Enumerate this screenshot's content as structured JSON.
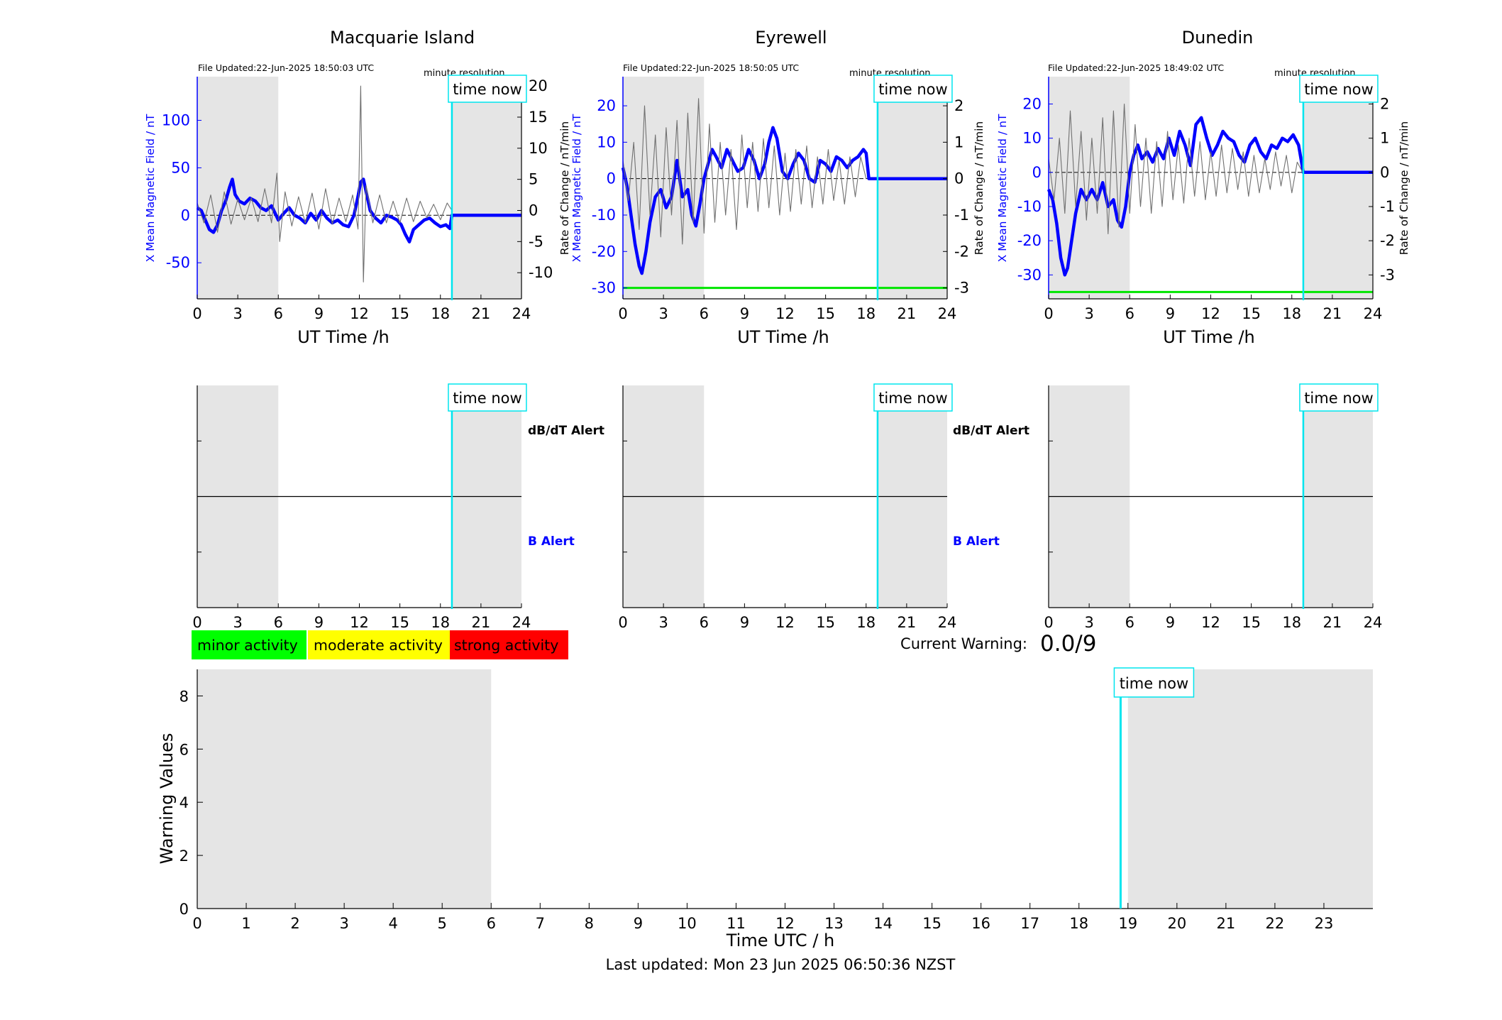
{
  "chart_data": [
    {
      "type": "line",
      "station": "Macquarie Island",
      "file_updated": "File Updated:22-Jun-2025 18:50:03 UTC",
      "resolution": "minute resolution",
      "time_now_label": "time now",
      "time_now_hour": 18.85,
      "night_shading_hours": [
        [
          0,
          6
        ],
        [
          18.9,
          24
        ]
      ],
      "xlabel": "UT Time /h",
      "xlim": [
        0,
        24
      ],
      "xticks": [
        0,
        3,
        6,
        9,
        12,
        15,
        18,
        21,
        24
      ],
      "ylabel_left": "X Mean Magnetic Field / nT",
      "ylim_left": [
        -88,
        146
      ],
      "yticks_left": [
        -50,
        0,
        50,
        100
      ],
      "ylabel_right": "Rate of Change / nT/min",
      "ylim_right": [
        -14.2,
        21.5
      ],
      "yticks_right": [
        -10,
        -5,
        0,
        5,
        10,
        15,
        20
      ],
      "warning_line_left": null,
      "series": [
        {
          "name": "X Mean Magnetic Field",
          "axis": "left",
          "color": "#0000ff",
          "x": [
            0,
            0.3,
            0.6,
            0.9,
            1.2,
            1.5,
            1.8,
            2.1,
            2.4,
            2.6,
            2.8,
            3.1,
            3.5,
            3.9,
            4.3,
            4.7,
            5.1,
            5.5,
            6.0,
            6.4,
            6.8,
            7.2,
            7.6,
            8.0,
            8.4,
            8.8,
            9.2,
            9.6,
            10.0,
            10.4,
            10.8,
            11.2,
            11.6,
            11.9,
            12.1,
            12.3,
            12.5,
            12.8,
            13.2,
            13.6,
            14.0,
            14.4,
            14.8,
            15.1,
            15.4,
            15.7,
            16.0,
            16.4,
            16.8,
            17.2,
            17.6,
            18.0,
            18.4,
            18.7,
            18.85,
            24
          ],
          "y": [
            8,
            5,
            -5,
            -15,
            -18,
            -10,
            5,
            15,
            30,
            38,
            22,
            15,
            12,
            18,
            15,
            8,
            5,
            10,
            -5,
            2,
            8,
            0,
            -3,
            -8,
            2,
            -5,
            5,
            -3,
            -8,
            -5,
            -10,
            -12,
            0,
            20,
            35,
            38,
            25,
            5,
            -3,
            -8,
            0,
            -2,
            -5,
            -10,
            -20,
            -28,
            -15,
            -10,
            -5,
            -3,
            -8,
            -12,
            -10,
            -14,
            0,
            0
          ]
        },
        {
          "name": "Rate of Change",
          "axis": "right",
          "color": "#707070",
          "x": [
            0,
            0.5,
            1.0,
            1.5,
            2.0,
            2.5,
            3.0,
            3.5,
            4.0,
            4.5,
            5.0,
            5.5,
            5.9,
            6.1,
            6.5,
            7.0,
            7.5,
            8.0,
            8.5,
            9.0,
            9.5,
            10.0,
            10.5,
            11.0,
            11.5,
            11.9,
            12.1,
            12.3,
            12.5,
            13.0,
            13.5,
            14.0,
            14.5,
            15.0,
            15.5,
            16.0,
            16.5,
            17.0,
            17.5,
            18.0,
            18.5,
            18.85
          ],
          "y": [
            1.2,
            -2.0,
            2.5,
            -3.5,
            3.0,
            -2.2,
            1.8,
            -1.5,
            2.0,
            -1.8,
            3.5,
            -2.0,
            6.0,
            -5.0,
            3.0,
            -2.5,
            2.2,
            -2.0,
            2.8,
            -3.0,
            3.5,
            -2.2,
            2.0,
            -1.8,
            2.5,
            -3.0,
            20.0,
            -11.5,
            4.0,
            -2.0,
            2.5,
            -2.0,
            1.5,
            -2.0,
            2.0,
            -1.8,
            1.5,
            -1.2,
            1.0,
            -1.5,
            1.2,
            0
          ]
        }
      ],
      "alert": {
        "dbdt_label": "dB/dT Alert",
        "b_label": "B Alert",
        "xlim": [
          0,
          24
        ]
      }
    },
    {
      "type": "line",
      "station": "Eyrewell",
      "file_updated": "File Updated:22-Jun-2025 18:50:05 UTC",
      "resolution": "minute resolution",
      "time_now_label": "time now",
      "time_now_hour": 18.85,
      "night_shading_hours": [
        [
          0,
          6
        ],
        [
          18.9,
          24
        ]
      ],
      "xlabel": "UT Time /h",
      "xlim": [
        0,
        24
      ],
      "xticks": [
        0,
        3,
        6,
        9,
        12,
        15,
        18,
        21,
        24
      ],
      "ylabel_left": "X Mean Magnetic Field / nT",
      "ylim_left": [
        -33,
        28
      ],
      "yticks_left": [
        -30,
        -20,
        -10,
        0,
        10,
        20
      ],
      "ylabel_right": "Rate of Change / nT/min",
      "ylim_right": [
        -3.3,
        2.8
      ],
      "yticks_right": [
        -3,
        -2,
        -1,
        0,
        1,
        2
      ],
      "warning_line_left": -30,
      "series": [
        {
          "name": "X Mean Magnetic Field",
          "axis": "left",
          "color": "#0000ff",
          "x": [
            0,
            0.3,
            0.6,
            0.9,
            1.2,
            1.4,
            1.7,
            2.0,
            2.4,
            2.8,
            3.2,
            3.6,
            4.0,
            4.4,
            4.8,
            5.1,
            5.4,
            5.7,
            6.0,
            6.3,
            6.6,
            6.9,
            7.3,
            7.7,
            8.1,
            8.5,
            8.9,
            9.3,
            9.7,
            10.1,
            10.5,
            10.8,
            11.1,
            11.4,
            11.8,
            12.2,
            12.6,
            13.0,
            13.4,
            13.8,
            14.2,
            14.6,
            15.0,
            15.4,
            15.8,
            16.2,
            16.6,
            17.0,
            17.4,
            17.8,
            18.0,
            18.2,
            24
          ],
          "y": [
            3,
            -2,
            -10,
            -18,
            -24,
            -26,
            -20,
            -12,
            -5,
            -3,
            -8,
            -5,
            5,
            -5,
            -3,
            -10,
            -13,
            -7,
            0,
            4,
            8,
            6,
            3,
            8,
            5,
            2,
            3,
            8,
            5,
            0,
            4,
            10,
            14,
            11,
            2,
            0,
            4,
            7,
            5,
            0,
            -1,
            5,
            4,
            2,
            6,
            5,
            3,
            5,
            6,
            8,
            7,
            0,
            0
          ]
        },
        {
          "name": "Rate of Change",
          "axis": "right",
          "color": "#707070",
          "x": [
            0,
            0.4,
            0.8,
            1.2,
            1.6,
            2.0,
            2.4,
            2.8,
            3.2,
            3.6,
            4.0,
            4.4,
            4.8,
            5.2,
            5.6,
            6.0,
            6.4,
            6.8,
            7.2,
            7.6,
            8.0,
            8.4,
            8.8,
            9.2,
            9.6,
            10.0,
            10.4,
            10.8,
            11.2,
            11.6,
            12.0,
            12.4,
            12.8,
            13.2,
            13.6,
            14.0,
            14.4,
            14.8,
            15.2,
            15.6,
            16.0,
            16.4,
            16.8,
            17.2,
            17.6,
            18.0
          ],
          "y": [
            0.5,
            -0.6,
            1.0,
            -1.4,
            2.0,
            -1.0,
            1.2,
            -1.6,
            1.4,
            -1.0,
            1.6,
            -1.8,
            1.8,
            -1.2,
            2.2,
            -1.5,
            1.5,
            -1.2,
            1.0,
            -1.0,
            0.8,
            -1.4,
            1.2,
            -0.8,
            1.0,
            -0.9,
            1.1,
            -0.8,
            0.9,
            -1.0,
            0.7,
            -0.9,
            0.8,
            -0.7,
            0.9,
            -0.8,
            0.6,
            -0.7,
            0.8,
            -0.6,
            0.5,
            -0.7,
            0.6,
            -0.5,
            0.6,
            0
          ]
        }
      ],
      "alert": {
        "dbdt_label": "dB/dT Alert",
        "b_label": "B Alert",
        "xlim": [
          0,
          24
        ]
      }
    },
    {
      "type": "line",
      "station": "Dunedin",
      "file_updated": "File Updated:22-Jun-2025 18:49:02 UTC",
      "resolution": "minute resolution",
      "time_now_label": "time now",
      "time_now_hour": 18.85,
      "night_shading_hours": [
        [
          0,
          6
        ],
        [
          18.9,
          24
        ]
      ],
      "xlabel": "UT Time /h",
      "xlim": [
        0,
        24
      ],
      "xticks": [
        0,
        3,
        6,
        9,
        12,
        15,
        18,
        21,
        24
      ],
      "ylabel_left": "X Mean Magnetic Field / nT",
      "ylim_left": [
        -37,
        28
      ],
      "yticks_left": [
        -30,
        -20,
        -10,
        0,
        10,
        20
      ],
      "ylabel_right": "Rate of Change / nT/min",
      "ylim_right": [
        -3.7,
        2.8
      ],
      "yticks_right": [
        -3,
        -2,
        -1,
        0,
        1,
        2
      ],
      "warning_line_left": -35,
      "series": [
        {
          "name": "X Mean Magnetic Field",
          "axis": "left",
          "color": "#0000ff",
          "x": [
            0,
            0.3,
            0.6,
            0.9,
            1.2,
            1.4,
            1.7,
            2.0,
            2.4,
            2.8,
            3.2,
            3.6,
            4.0,
            4.4,
            4.8,
            5.1,
            5.4,
            5.7,
            6.0,
            6.3,
            6.6,
            6.9,
            7.3,
            7.7,
            8.1,
            8.5,
            8.9,
            9.3,
            9.7,
            10.1,
            10.5,
            10.9,
            11.3,
            11.7,
            12.1,
            12.5,
            12.9,
            13.3,
            13.7,
            14.1,
            14.5,
            14.9,
            15.3,
            15.7,
            16.1,
            16.5,
            16.9,
            17.3,
            17.7,
            18.1,
            18.5,
            18.85,
            24
          ],
          "y": [
            -5,
            -8,
            -15,
            -25,
            -30,
            -28,
            -20,
            -12,
            -5,
            -8,
            -5,
            -8,
            -3,
            -10,
            -8,
            -14,
            -16,
            -10,
            0,
            5,
            8,
            4,
            6,
            3,
            7,
            4,
            10,
            5,
            12,
            8,
            2,
            14,
            16,
            10,
            5,
            8,
            12,
            10,
            9,
            5,
            3,
            8,
            10,
            6,
            4,
            8,
            7,
            10,
            9,
            11,
            8,
            0,
            0
          ]
        },
        {
          "name": "Rate of Change",
          "axis": "right",
          "color": "#707070",
          "x": [
            0,
            0.4,
            0.8,
            1.2,
            1.6,
            2.0,
            2.4,
            2.8,
            3.2,
            3.6,
            4.0,
            4.4,
            4.8,
            5.2,
            5.6,
            6.0,
            6.4,
            6.8,
            7.2,
            7.6,
            8.0,
            8.4,
            8.8,
            9.2,
            9.6,
            10.0,
            10.4,
            10.8,
            11.2,
            11.6,
            12.0,
            12.4,
            12.8,
            13.2,
            13.6,
            14.0,
            14.4,
            14.8,
            15.2,
            15.6,
            16.0,
            16.4,
            16.8,
            17.2,
            17.6,
            18.0,
            18.4,
            18.8
          ],
          "y": [
            0.4,
            -0.8,
            1.0,
            -1.2,
            1.8,
            -1.0,
            1.2,
            -1.4,
            1.0,
            -1.2,
            1.6,
            -1.8,
            1.8,
            -1.6,
            2.0,
            -1.2,
            1.4,
            -1.0,
            1.0,
            -1.2,
            0.9,
            -1.0,
            1.2,
            -0.8,
            0.8,
            -0.9,
            1.0,
            -0.7,
            0.9,
            -0.8,
            0.6,
            -0.7,
            0.8,
            -0.6,
            0.7,
            -0.5,
            0.6,
            -0.7,
            0.5,
            -0.6,
            0.4,
            -0.5,
            0.6,
            -0.4,
            0.5,
            -0.6,
            0.3,
            0
          ]
        }
      ],
      "alert": {
        "dbdt_label": "dB/dT Alert",
        "b_label": "B Alert",
        "xlim": [
          0,
          24
        ]
      }
    },
    {
      "type": "bar",
      "title": "",
      "xlabel": "Time UTC / h",
      "ylabel": "Warning Values",
      "xlim": [
        0,
        24
      ],
      "ylim": [
        0,
        9
      ],
      "xticks": [
        0,
        1,
        2,
        3,
        4,
        5,
        6,
        7,
        8,
        9,
        10,
        11,
        12,
        13,
        14,
        15,
        16,
        17,
        18,
        19,
        20,
        21,
        22,
        23
      ],
      "yticks": [
        0,
        2,
        4,
        6,
        8
      ],
      "night_shading_hours": [
        [
          0,
          6
        ],
        [
          19,
          24
        ]
      ],
      "time_now_label": "time now",
      "time_now_hour": 18.85,
      "values": []
    }
  ],
  "legend": {
    "minor": {
      "label": "minor activity",
      "color": "#00ff00"
    },
    "moderate": {
      "label": "moderate activity",
      "color": "#ffff00"
    },
    "strong": {
      "label": "strong activity",
      "color": "#ff0000"
    }
  },
  "current_warning": {
    "label": "Current Warning:",
    "value": "0.0/9"
  },
  "footer": {
    "last_updated": "Last updated: Mon 23 Jun 2025 06:50:36 NZST"
  },
  "colors": {
    "field": "#0000ff",
    "rate": "#707070",
    "time_now": "#00e5ee",
    "night": "#e5e5e5",
    "threshold": "#00e600"
  }
}
